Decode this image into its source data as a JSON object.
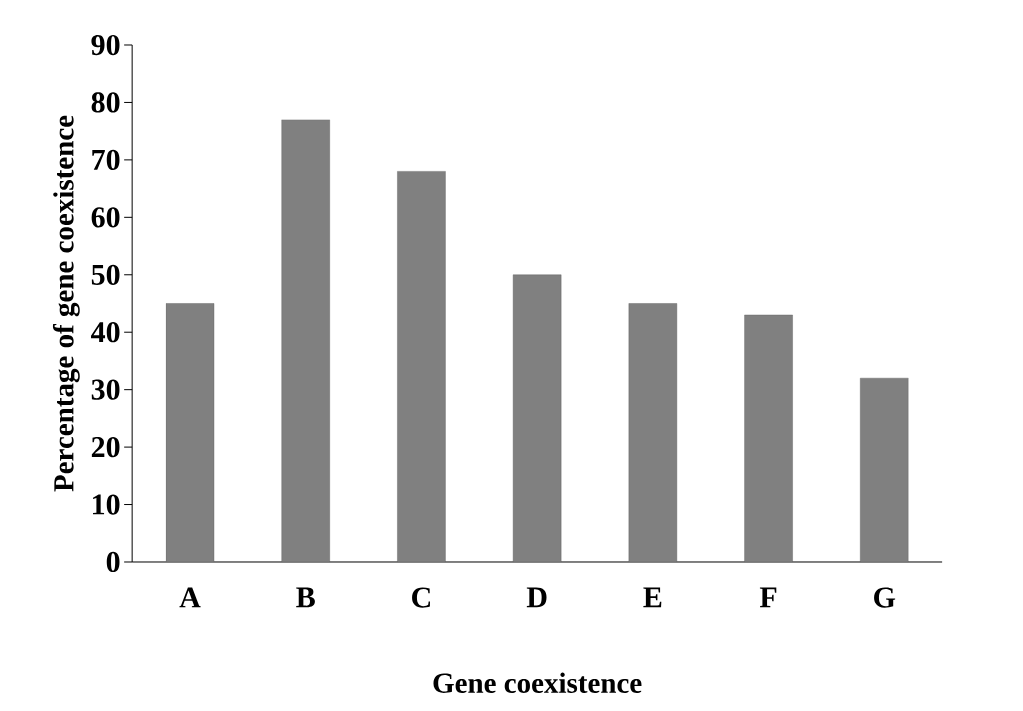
{
  "chart_data": {
    "type": "bar",
    "xlabel": "Gene coexistence",
    "ylabel": "Percentage of gene coexistence",
    "categories": [
      "A",
      "B",
      "C",
      "D",
      "E",
      "F",
      "G"
    ],
    "values": [
      45,
      77,
      68,
      50,
      45,
      43,
      32
    ],
    "color": "#808080",
    "ylim": [
      0,
      90
    ],
    "yticks": [
      0,
      10,
      20,
      30,
      40,
      50,
      60,
      70,
      80,
      90
    ]
  }
}
